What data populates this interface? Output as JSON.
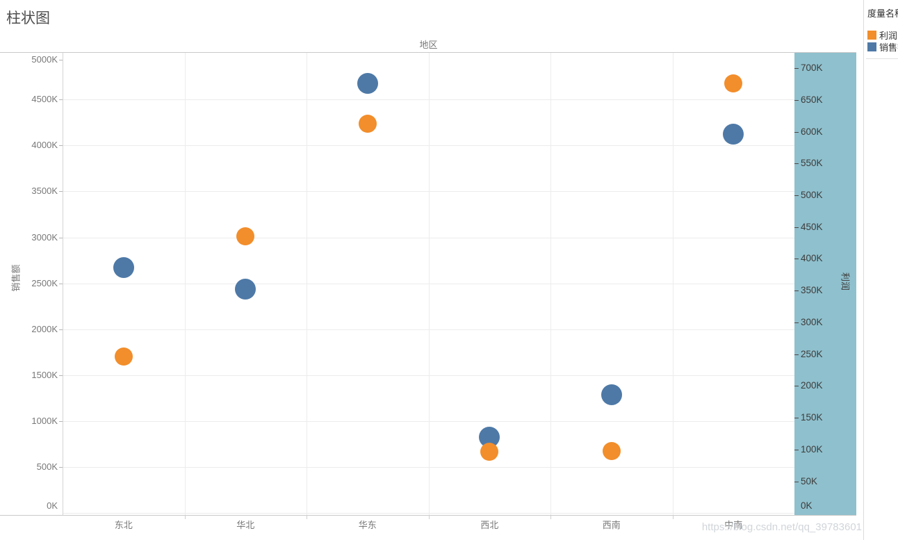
{
  "title": "柱状图",
  "watermark": "https://blog.csdn.net/qq_39783601",
  "legend": {
    "title": "度量名称",
    "items": [
      {
        "label": "利润",
        "color": "#F28E2B"
      },
      {
        "label": "销售额",
        "color": "#4E79A7"
      }
    ]
  },
  "chart_data": {
    "type": "scatter",
    "title": "柱状图",
    "column_field_label": "地区",
    "categories": [
      "东北",
      "华北",
      "华东",
      "西北",
      "西南",
      "中南"
    ],
    "series": [
      {
        "name": "利润",
        "axis": "right",
        "color": "#F28E2B",
        "values_k": [
          246,
          435,
          613,
          97,
          98,
          676
        ]
      },
      {
        "name": "销售额",
        "axis": "left",
        "color": "#4E79A7",
        "values_k": [
          2675,
          2435,
          4675,
          825,
          1290,
          4120
        ]
      }
    ],
    "left_axis": {
      "title": "销售额",
      "min_k": 0,
      "max_k": 5000,
      "step_k": 500,
      "unit_suffix": "K",
      "ticks_k": [
        0,
        500,
        1000,
        1500,
        2000,
        2500,
        3000,
        3500,
        4000,
        4500,
        5000
      ]
    },
    "right_axis": {
      "title": "利润",
      "min_k": 0,
      "max_k": 700,
      "step_k": 50,
      "unit_suffix": "K",
      "band_color": "#8FC0CD",
      "ticks_k": [
        0,
        50,
        100,
        150,
        200,
        250,
        300,
        350,
        400,
        450,
        500,
        550,
        600,
        650,
        700
      ]
    },
    "grid": true,
    "legend_position": "top-right"
  }
}
